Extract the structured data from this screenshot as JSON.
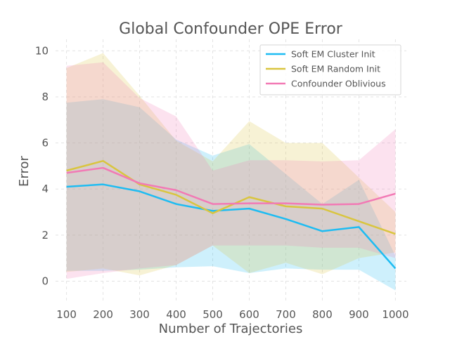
{
  "chart_data": {
    "type": "line",
    "title": "Global Confounder OPE Error",
    "xlabel": "Number of Trajectories",
    "ylabel": "Error",
    "x": [
      100,
      200,
      300,
      400,
      500,
      600,
      700,
      800,
      900,
      1000
    ],
    "xlim": [
      70,
      1030
    ],
    "ylim": [
      -0.9,
      10.5
    ],
    "xticks": [
      "100",
      "200",
      "300",
      "400",
      "500",
      "600",
      "700",
      "800",
      "900",
      "1000"
    ],
    "yticks": [
      "0",
      "2",
      "4",
      "6",
      "8",
      "10"
    ],
    "grid": true,
    "legend_position": "top-right",
    "series": [
      {
        "name": "Soft EM Cluster Init",
        "color": "#1ebcf2",
        "values": [
          4.1,
          4.2,
          3.9,
          3.35,
          3.05,
          3.15,
          2.7,
          2.17,
          2.35,
          0.55
        ],
        "lower": [
          0.45,
          0.45,
          0.5,
          0.6,
          0.65,
          0.35,
          0.55,
          0.5,
          0.5,
          -0.4
        ],
        "upper": [
          7.75,
          7.9,
          7.55,
          6.15,
          5.45,
          5.95,
          4.65,
          3.35,
          4.4,
          1.1
        ]
      },
      {
        "name": "Soft EM Random Init",
        "color": "#d9c53f",
        "values": [
          4.8,
          5.22,
          4.2,
          3.75,
          2.95,
          3.65,
          3.25,
          3.15,
          2.6,
          2.05
        ],
        "lower": [
          0.4,
          0.55,
          0.25,
          0.7,
          1.55,
          0.35,
          0.8,
          0.3,
          1.0,
          1.25
        ],
        "upper": [
          9.25,
          9.9,
          8.05,
          6.1,
          5.2,
          6.95,
          6.0,
          6.0,
          4.5,
          3.0
        ]
      },
      {
        "name": "Confounder Oblivious",
        "color": "#f27ab5",
        "values": [
          4.7,
          4.92,
          4.25,
          3.95,
          3.35,
          3.38,
          3.38,
          3.32,
          3.35,
          3.8
        ],
        "lower": [
          0.1,
          0.35,
          0.55,
          0.7,
          1.55,
          1.55,
          1.55,
          1.45,
          1.45,
          1.0
        ],
        "upper": [
          9.35,
          9.5,
          7.95,
          7.15,
          4.8,
          5.25,
          5.25,
          5.2,
          5.25,
          6.6
        ]
      }
    ]
  }
}
